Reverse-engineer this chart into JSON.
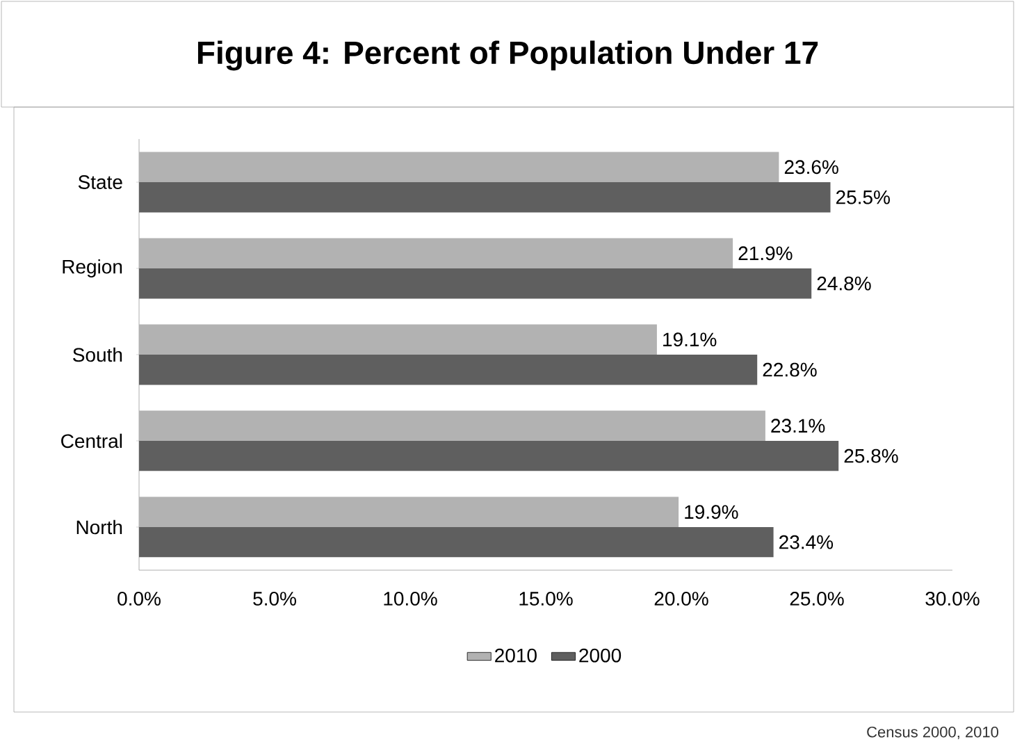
{
  "chart_data": {
    "type": "bar",
    "orientation": "horizontal",
    "title": "Figure 4: Percent of Population Under 17",
    "categories": [
      "State",
      "Region",
      "South",
      "Central",
      "North"
    ],
    "series": [
      {
        "name": "2010",
        "color": "#b2b2b2",
        "values": [
          23.6,
          21.9,
          19.1,
          23.1,
          19.9
        ],
        "value_labels": [
          "23.6%",
          "21.9%",
          "19.1%",
          "23.1%",
          "19.9%"
        ]
      },
      {
        "name": "2000",
        "color": "#5f5f5f",
        "values": [
          25.5,
          24.8,
          22.8,
          25.8,
          23.4
        ],
        "value_labels": [
          "25.5%",
          "24.8%",
          "22.8%",
          "25.8%",
          "23.4%"
        ]
      }
    ],
    "xlim": [
      0,
      30
    ],
    "xticks": [
      {
        "value": 0,
        "label": "0.0%"
      },
      {
        "value": 5,
        "label": "5.0%"
      },
      {
        "value": 10,
        "label": "10.0%"
      },
      {
        "value": 15,
        "label": "15.0%"
      },
      {
        "value": 20,
        "label": "20.0%"
      },
      {
        "value": 25,
        "label": "25.0%"
      },
      {
        "value": 30,
        "label": "30.0%"
      }
    ],
    "legend": "bottom",
    "annotations": [
      "Census 2000, 2010"
    ]
  }
}
